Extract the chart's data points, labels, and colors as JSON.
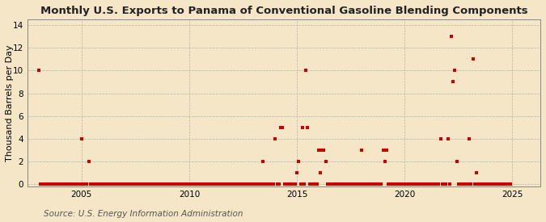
{
  "title": "Monthly U.S. Exports to Panama of Conventional Gasoline Blending Components",
  "ylabel": "Thousand Barrels per Day",
  "source": "Source: U.S. Energy Information Administration",
  "background_color": "#f5e6c8",
  "marker_color": "#cc0000",
  "marker_size": 9,
  "ylim": [
    -0.2,
    14.5
  ],
  "yticks": [
    0,
    2,
    4,
    6,
    8,
    10,
    12,
    14
  ],
  "xlim": [
    2002.5,
    2026.3
  ],
  "xticks": [
    2005,
    2010,
    2015,
    2020,
    2025
  ],
  "grid_color": "#aaaaaa",
  "title_fontsize": 9.5,
  "source_fontsize": 7.5,
  "ylabel_fontsize": 8,
  "monthly_data": [
    [
      2003.0,
      10.0
    ],
    [
      2003.083,
      0.0
    ],
    [
      2003.167,
      0.0
    ],
    [
      2003.25,
      0.0
    ],
    [
      2003.333,
      0.0
    ],
    [
      2003.417,
      0.0
    ],
    [
      2003.5,
      0.0
    ],
    [
      2003.583,
      0.0
    ],
    [
      2003.667,
      0.0
    ],
    [
      2003.75,
      0.0
    ],
    [
      2003.833,
      0.0
    ],
    [
      2003.917,
      0.0
    ],
    [
      2004.0,
      0.0
    ],
    [
      2004.083,
      0.0
    ],
    [
      2004.167,
      0.0
    ],
    [
      2004.25,
      0.0
    ],
    [
      2004.333,
      0.0
    ],
    [
      2004.417,
      0.0
    ],
    [
      2004.5,
      0.0
    ],
    [
      2004.583,
      0.0
    ],
    [
      2004.667,
      0.0
    ],
    [
      2004.75,
      0.0
    ],
    [
      2004.833,
      0.0
    ],
    [
      2004.917,
      0.0
    ],
    [
      2005.0,
      4.0
    ],
    [
      2005.083,
      0.0
    ],
    [
      2005.167,
      0.0
    ],
    [
      2005.25,
      0.0
    ],
    [
      2005.333,
      2.0
    ],
    [
      2005.417,
      0.0
    ],
    [
      2005.5,
      0.0
    ],
    [
      2005.583,
      0.0
    ],
    [
      2005.667,
      0.0
    ],
    [
      2005.75,
      0.0
    ],
    [
      2005.833,
      0.0
    ],
    [
      2005.917,
      0.0
    ],
    [
      2006.0,
      0.0
    ],
    [
      2006.083,
      0.0
    ],
    [
      2006.167,
      0.0
    ],
    [
      2006.25,
      0.0
    ],
    [
      2006.333,
      0.0
    ],
    [
      2006.417,
      0.0
    ],
    [
      2006.5,
      0.0
    ],
    [
      2006.583,
      0.0
    ],
    [
      2006.667,
      0.0
    ],
    [
      2006.75,
      0.0
    ],
    [
      2006.833,
      0.0
    ],
    [
      2006.917,
      0.0
    ],
    [
      2007.0,
      0.0
    ],
    [
      2007.083,
      0.0
    ],
    [
      2007.167,
      0.0
    ],
    [
      2007.25,
      0.0
    ],
    [
      2007.333,
      0.0
    ],
    [
      2007.417,
      0.0
    ],
    [
      2007.5,
      0.0
    ],
    [
      2007.583,
      0.0
    ],
    [
      2007.667,
      0.0
    ],
    [
      2007.75,
      0.0
    ],
    [
      2007.833,
      0.0
    ],
    [
      2007.917,
      0.0
    ],
    [
      2008.0,
      0.0
    ],
    [
      2008.083,
      0.0
    ],
    [
      2008.167,
      0.0
    ],
    [
      2008.25,
      0.0
    ],
    [
      2008.333,
      0.0
    ],
    [
      2008.417,
      0.0
    ],
    [
      2008.5,
      0.0
    ],
    [
      2008.583,
      0.0
    ],
    [
      2008.667,
      0.0
    ],
    [
      2008.75,
      0.0
    ],
    [
      2008.833,
      0.0
    ],
    [
      2008.917,
      0.0
    ],
    [
      2009.0,
      0.0
    ],
    [
      2009.083,
      0.0
    ],
    [
      2009.167,
      0.0
    ],
    [
      2009.25,
      0.0
    ],
    [
      2009.333,
      0.0
    ],
    [
      2009.417,
      0.0
    ],
    [
      2009.5,
      0.0
    ],
    [
      2009.583,
      0.0
    ],
    [
      2009.667,
      0.0
    ],
    [
      2009.75,
      0.0
    ],
    [
      2009.833,
      0.0
    ],
    [
      2009.917,
      0.0
    ],
    [
      2010.0,
      0.0
    ],
    [
      2010.083,
      0.0
    ],
    [
      2010.167,
      0.0
    ],
    [
      2010.25,
      0.0
    ],
    [
      2010.333,
      0.0
    ],
    [
      2010.417,
      0.0
    ],
    [
      2010.5,
      0.0
    ],
    [
      2010.583,
      0.0
    ],
    [
      2010.667,
      0.0
    ],
    [
      2010.75,
      0.0
    ],
    [
      2010.833,
      0.0
    ],
    [
      2010.917,
      0.0
    ],
    [
      2011.0,
      0.0
    ],
    [
      2011.083,
      0.0
    ],
    [
      2011.167,
      0.0
    ],
    [
      2011.25,
      0.0
    ],
    [
      2011.333,
      0.0
    ],
    [
      2011.417,
      0.0
    ],
    [
      2011.5,
      0.0
    ],
    [
      2011.583,
      0.0
    ],
    [
      2011.667,
      0.0
    ],
    [
      2011.75,
      0.0
    ],
    [
      2011.833,
      0.0
    ],
    [
      2011.917,
      0.0
    ],
    [
      2012.0,
      0.0
    ],
    [
      2012.083,
      0.0
    ],
    [
      2012.167,
      0.0
    ],
    [
      2012.25,
      0.0
    ],
    [
      2012.333,
      0.0
    ],
    [
      2012.417,
      0.0
    ],
    [
      2012.5,
      0.0
    ],
    [
      2012.583,
      0.0
    ],
    [
      2012.667,
      0.0
    ],
    [
      2012.75,
      0.0
    ],
    [
      2012.833,
      0.0
    ],
    [
      2012.917,
      0.0
    ],
    [
      2013.0,
      0.0
    ],
    [
      2013.083,
      0.0
    ],
    [
      2013.167,
      0.0
    ],
    [
      2013.25,
      0.0
    ],
    [
      2013.333,
      0.0
    ],
    [
      2013.417,
      2.0
    ],
    [
      2013.5,
      0.0
    ],
    [
      2013.583,
      0.0
    ],
    [
      2013.667,
      0.0
    ],
    [
      2013.75,
      0.0
    ],
    [
      2013.833,
      0.0
    ],
    [
      2013.917,
      0.0
    ],
    [
      2014.0,
      4.0
    ],
    [
      2014.083,
      0.0
    ],
    [
      2014.167,
      0.0
    ],
    [
      2014.25,
      5.0
    ],
    [
      2014.333,
      5.0
    ],
    [
      2014.417,
      0.0
    ],
    [
      2014.5,
      0.0
    ],
    [
      2014.583,
      0.0
    ],
    [
      2014.667,
      0.0
    ],
    [
      2014.75,
      0.0
    ],
    [
      2014.833,
      0.0
    ],
    [
      2014.917,
      0.0
    ],
    [
      2015.0,
      1.0
    ],
    [
      2015.083,
      2.0
    ],
    [
      2015.167,
      0.0
    ],
    [
      2015.25,
      5.0
    ],
    [
      2015.333,
      0.0
    ],
    [
      2015.417,
      10.0
    ],
    [
      2015.5,
      5.0
    ],
    [
      2015.583,
      0.0
    ],
    [
      2015.667,
      0.0
    ],
    [
      2015.75,
      0.0
    ],
    [
      2015.833,
      0.0
    ],
    [
      2015.917,
      0.0
    ],
    [
      2016.0,
      3.0
    ],
    [
      2016.083,
      1.0
    ],
    [
      2016.167,
      3.0
    ],
    [
      2016.25,
      3.0
    ],
    [
      2016.333,
      2.0
    ],
    [
      2016.417,
      0.0
    ],
    [
      2016.5,
      0.0
    ],
    [
      2016.583,
      0.0
    ],
    [
      2016.667,
      0.0
    ],
    [
      2016.75,
      0.0
    ],
    [
      2016.833,
      0.0
    ],
    [
      2016.917,
      0.0
    ],
    [
      2017.0,
      0.0
    ],
    [
      2017.083,
      0.0
    ],
    [
      2017.167,
      0.0
    ],
    [
      2017.25,
      0.0
    ],
    [
      2017.333,
      0.0
    ],
    [
      2017.417,
      0.0
    ],
    [
      2017.5,
      0.0
    ],
    [
      2017.583,
      0.0
    ],
    [
      2017.667,
      0.0
    ],
    [
      2017.75,
      0.0
    ],
    [
      2017.833,
      0.0
    ],
    [
      2017.917,
      0.0
    ],
    [
      2018.0,
      3.0
    ],
    [
      2018.083,
      0.0
    ],
    [
      2018.167,
      0.0
    ],
    [
      2018.25,
      0.0
    ],
    [
      2018.333,
      0.0
    ],
    [
      2018.417,
      0.0
    ],
    [
      2018.5,
      0.0
    ],
    [
      2018.583,
      0.0
    ],
    [
      2018.667,
      0.0
    ],
    [
      2018.75,
      0.0
    ],
    [
      2018.833,
      0.0
    ],
    [
      2018.917,
      0.0
    ],
    [
      2019.0,
      3.0
    ],
    [
      2019.083,
      2.0
    ],
    [
      2019.167,
      3.0
    ],
    [
      2019.25,
      0.0
    ],
    [
      2019.333,
      0.0
    ],
    [
      2019.417,
      0.0
    ],
    [
      2019.5,
      0.0
    ],
    [
      2019.583,
      0.0
    ],
    [
      2019.667,
      0.0
    ],
    [
      2019.75,
      0.0
    ],
    [
      2019.833,
      0.0
    ],
    [
      2019.917,
      0.0
    ],
    [
      2020.0,
      0.0
    ],
    [
      2020.083,
      0.0
    ],
    [
      2020.167,
      0.0
    ],
    [
      2020.25,
      0.0
    ],
    [
      2020.333,
      0.0
    ],
    [
      2020.417,
      0.0
    ],
    [
      2020.5,
      0.0
    ],
    [
      2020.583,
      0.0
    ],
    [
      2020.667,
      0.0
    ],
    [
      2020.75,
      0.0
    ],
    [
      2020.833,
      0.0
    ],
    [
      2020.917,
      0.0
    ],
    [
      2021.0,
      0.0
    ],
    [
      2021.083,
      0.0
    ],
    [
      2021.167,
      0.0
    ],
    [
      2021.25,
      0.0
    ],
    [
      2021.333,
      0.0
    ],
    [
      2021.417,
      0.0
    ],
    [
      2021.5,
      0.0
    ],
    [
      2021.583,
      0.0
    ],
    [
      2021.667,
      4.0
    ],
    [
      2021.75,
      0.0
    ],
    [
      2021.833,
      0.0
    ],
    [
      2021.917,
      0.0
    ],
    [
      2022.0,
      4.0
    ],
    [
      2022.083,
      0.0
    ],
    [
      2022.167,
      13.0
    ],
    [
      2022.25,
      9.0
    ],
    [
      2022.333,
      10.0
    ],
    [
      2022.417,
      2.0
    ],
    [
      2022.5,
      0.0
    ],
    [
      2022.583,
      0.0
    ],
    [
      2022.667,
      0.0
    ],
    [
      2022.75,
      0.0
    ],
    [
      2022.833,
      0.0
    ],
    [
      2022.917,
      0.0
    ],
    [
      2023.0,
      4.0
    ],
    [
      2023.083,
      0.0
    ],
    [
      2023.167,
      11.0
    ],
    [
      2023.25,
      0.0
    ],
    [
      2023.333,
      1.0
    ],
    [
      2023.417,
      0.0
    ],
    [
      2023.5,
      0.0
    ],
    [
      2023.583,
      0.0
    ],
    [
      2023.667,
      0.0
    ],
    [
      2023.75,
      0.0
    ],
    [
      2023.833,
      0.0
    ],
    [
      2023.917,
      0.0
    ],
    [
      2024.0,
      0.0
    ],
    [
      2024.083,
      0.0
    ],
    [
      2024.167,
      0.0
    ],
    [
      2024.25,
      0.0
    ],
    [
      2024.333,
      0.0
    ],
    [
      2024.417,
      0.0
    ],
    [
      2024.5,
      0.0
    ],
    [
      2024.583,
      0.0
    ],
    [
      2024.667,
      0.0
    ],
    [
      2024.75,
      0.0
    ],
    [
      2024.833,
      0.0
    ],
    [
      2024.917,
      0.0
    ]
  ]
}
